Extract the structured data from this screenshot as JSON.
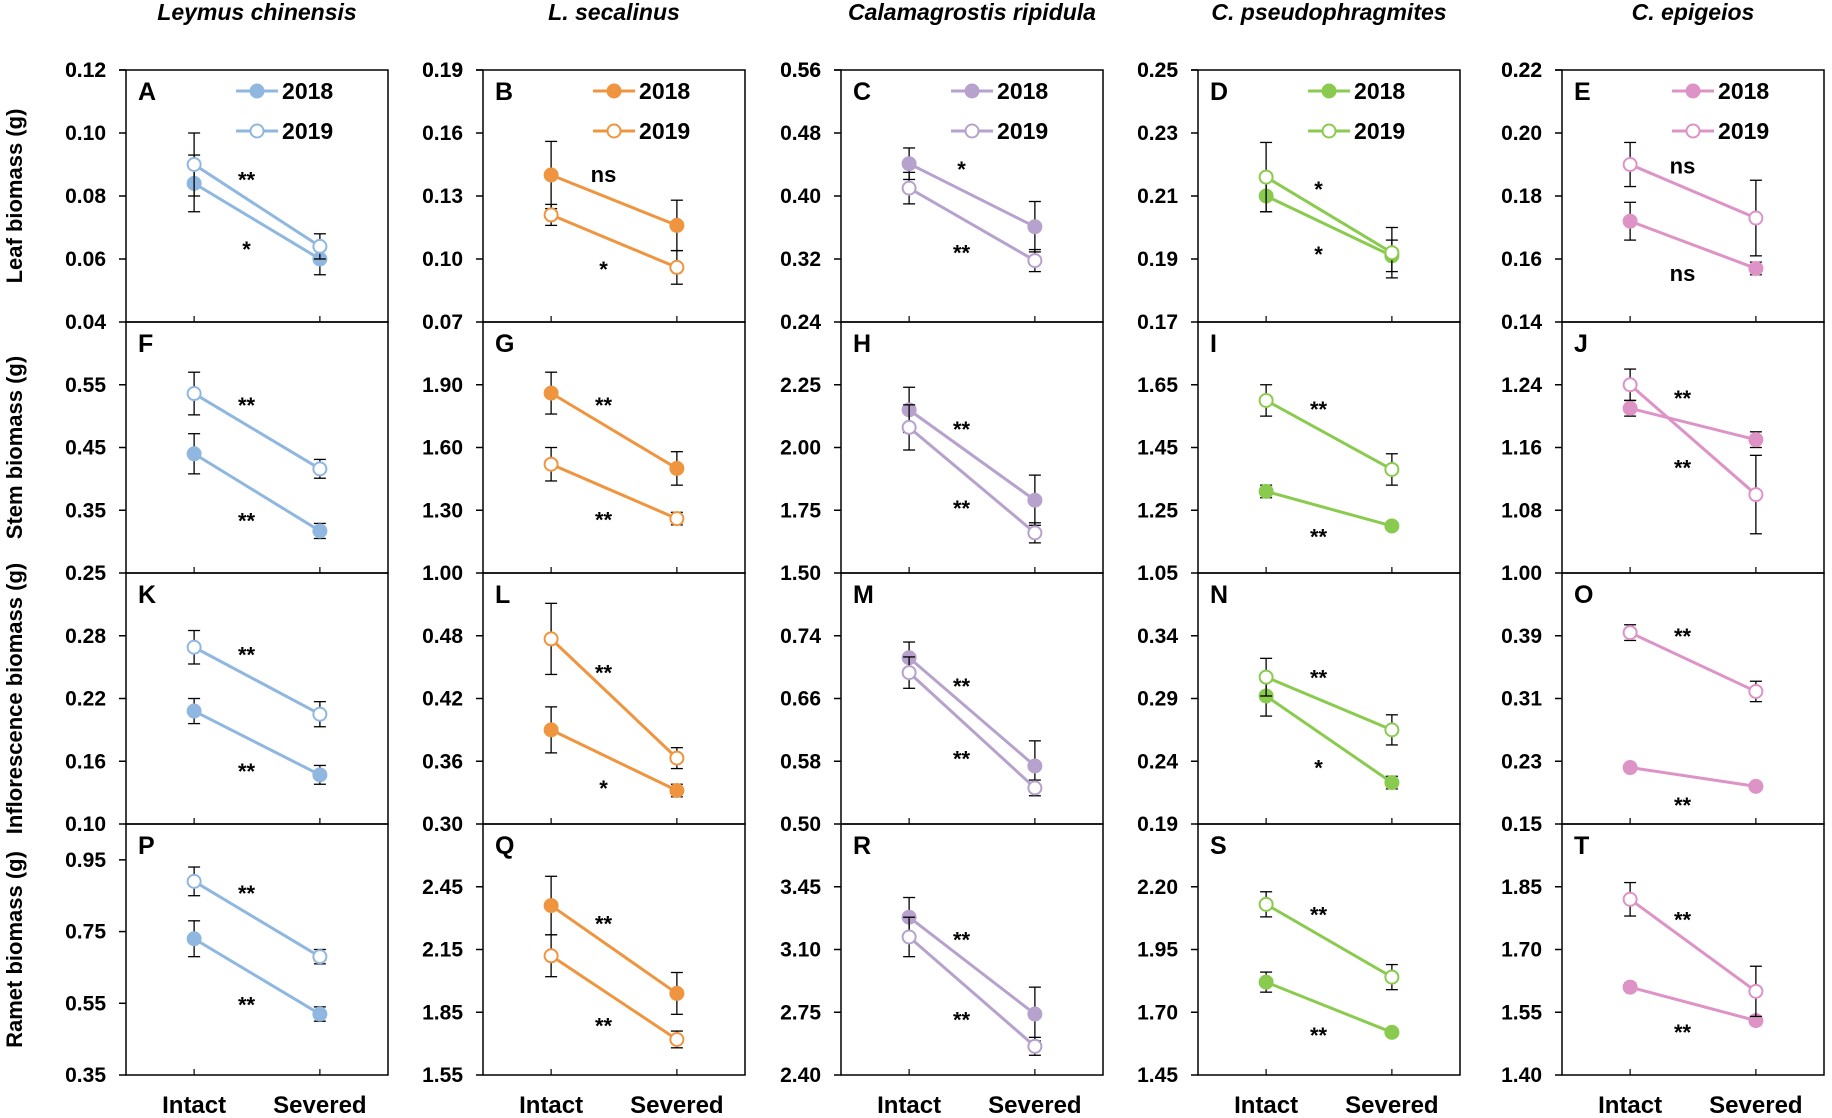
{
  "chart_data": {
    "type": "line",
    "x_categories": [
      "Intact",
      "Severed"
    ],
    "years": [
      "2018",
      "2019"
    ],
    "columns": [
      {
        "species": "Leymus chinensis",
        "color": "#8fb7e0"
      },
      {
        "species": "L. secalinus",
        "color": "#f0953f"
      },
      {
        "species": "Calamagrostis ripidula",
        "color": "#b6a2cc"
      },
      {
        "species": "C. pseudophragmites",
        "color": "#8acb4f"
      },
      {
        "species": "C. epigeios",
        "color": "#dd93c6"
      }
    ],
    "rows": [
      {
        "ylabel": "Leaf biomass (g)"
      },
      {
        "ylabel": "Stem biomass (g)"
      },
      {
        "ylabel": "Inflorescence biomass (g)"
      },
      {
        "ylabel": "Ramet biomass (g)"
      }
    ],
    "panels": [
      {
        "label": "A",
        "row": 0,
        "col": 0,
        "ylim": [
          0.04,
          0.12
        ],
        "yticks": [
          "0.04",
          "0.06",
          "0.08",
          "0.10",
          "0.12"
        ],
        "legend": true,
        "series": [
          {
            "name": "2018",
            "filled": true,
            "values": [
              0.084,
              0.06
            ],
            "errors": [
              0.009,
              0.005
            ]
          },
          {
            "name": "2019",
            "filled": false,
            "values": [
              0.09,
              0.064
            ],
            "errors": [
              0.01,
              0.004
            ]
          }
        ],
        "sig": [
          {
            "text": "**",
            "pos": "upper"
          },
          {
            "text": "*",
            "pos": "lower"
          }
        ]
      },
      {
        "label": "B",
        "row": 0,
        "col": 1,
        "ylim": [
          0.07,
          0.19
        ],
        "yticks": [
          "0.07",
          "0.10",
          "0.13",
          "0.16",
          "0.19"
        ],
        "legend": true,
        "series": [
          {
            "name": "2018",
            "filled": true,
            "values": [
              0.14,
              0.116
            ],
            "errors": [
              0.016,
              0.012
            ]
          },
          {
            "name": "2019",
            "filled": false,
            "values": [
              0.121,
              0.096
            ],
            "errors": [
              0.005,
              0.008
            ]
          }
        ],
        "sig": [
          {
            "text": "ns",
            "pos": "upper"
          },
          {
            "text": "*",
            "pos": "lower"
          }
        ]
      },
      {
        "label": "C",
        "row": 0,
        "col": 2,
        "ylim": [
          0.24,
          0.56
        ],
        "yticks": [
          "0.24",
          "0.32",
          "0.40",
          "0.48",
          "0.56"
        ],
        "legend": true,
        "series": [
          {
            "name": "2018",
            "filled": true,
            "values": [
              0.441,
              0.361
            ],
            "errors": [
              0.02,
              0.032
            ]
          },
          {
            "name": "2019",
            "filled": false,
            "values": [
              0.41,
              0.318
            ],
            "errors": [
              0.02,
              0.014
            ]
          }
        ],
        "sig": [
          {
            "text": "*",
            "pos": "upper"
          },
          {
            "text": "**",
            "pos": "lower"
          }
        ]
      },
      {
        "label": "D",
        "row": 0,
        "col": 3,
        "ylim": [
          0.17,
          0.25
        ],
        "yticks": [
          "0.17",
          "0.19",
          "0.21",
          "0.23",
          "0.25"
        ],
        "legend": true,
        "series": [
          {
            "name": "2018",
            "filled": true,
            "values": [
              0.21,
              0.191
            ],
            "errors": [
              0.005,
              0.005
            ]
          },
          {
            "name": "2019",
            "filled": false,
            "values": [
              0.216,
              0.192
            ],
            "errors": [
              0.011,
              0.008
            ]
          }
        ],
        "sig": [
          {
            "text": "*",
            "pos": "upper"
          },
          {
            "text": "*",
            "pos": "lower"
          }
        ]
      },
      {
        "label": "E",
        "row": 0,
        "col": 4,
        "ylim": [
          0.14,
          0.22
        ],
        "yticks": [
          "0.14",
          "0.16",
          "0.18",
          "0.20",
          "0.22"
        ],
        "legend": true,
        "series": [
          {
            "name": "2018",
            "filled": true,
            "values": [
              0.172,
              0.157
            ],
            "errors": [
              0.006,
              0.002
            ]
          },
          {
            "name": "2019",
            "filled": false,
            "values": [
              0.19,
              0.173
            ],
            "errors": [
              0.007,
              0.012
            ]
          }
        ],
        "sig": [
          {
            "text": "ns",
            "pos": "upper"
          },
          {
            "text": "ns",
            "pos": "lower"
          }
        ]
      },
      {
        "label": "F",
        "row": 1,
        "col": 0,
        "ylim": [
          0.25,
          0.65
        ],
        "yticks": [
          "0.25",
          "0.35",
          "0.45",
          "0.55"
        ],
        "legend": false,
        "series": [
          {
            "name": "2018",
            "filled": true,
            "values": [
              0.44,
              0.317
            ],
            "errors": [
              0.032,
              0.012
            ]
          },
          {
            "name": "2019",
            "filled": false,
            "values": [
              0.536,
              0.416
            ],
            "errors": [
              0.034,
              0.015
            ]
          }
        ],
        "sig": [
          {
            "text": "**",
            "pos": "upper"
          },
          {
            "text": "**",
            "pos": "lower"
          }
        ]
      },
      {
        "label": "G",
        "row": 1,
        "col": 1,
        "ylim": [
          1.0,
          2.2
        ],
        "yticks": [
          "1.00",
          "1.30",
          "1.60",
          "1.90"
        ],
        "legend": false,
        "series": [
          {
            "name": "2018",
            "filled": true,
            "values": [
              1.86,
              1.5
            ],
            "errors": [
              0.1,
              0.08
            ]
          },
          {
            "name": "2019",
            "filled": false,
            "values": [
              1.52,
              1.26
            ],
            "errors": [
              0.08,
              0.03
            ]
          }
        ],
        "sig": [
          {
            "text": "**",
            "pos": "upper"
          },
          {
            "text": "**",
            "pos": "lower"
          }
        ]
      },
      {
        "label": "H",
        "row": 1,
        "col": 2,
        "ylim": [
          1.5,
          2.5
        ],
        "yticks": [
          "1.50",
          "1.75",
          "2.00",
          "2.25"
        ],
        "legend": false,
        "series": [
          {
            "name": "2018",
            "filled": true,
            "values": [
              2.15,
              1.79
            ],
            "errors": [
              0.09,
              0.1
            ]
          },
          {
            "name": "2019",
            "filled": false,
            "values": [
              2.08,
              1.66
            ],
            "errors": [
              0.09,
              0.04
            ]
          }
        ],
        "sig": [
          {
            "text": "**",
            "pos": "upper"
          },
          {
            "text": "**",
            "pos": "lower"
          }
        ]
      },
      {
        "label": "I",
        "row": 1,
        "col": 3,
        "ylim": [
          1.05,
          1.85
        ],
        "yticks": [
          "1.05",
          "1.25",
          "1.45",
          "1.65"
        ],
        "legend": false,
        "series": [
          {
            "name": "2018",
            "filled": true,
            "values": [
              1.31,
              1.2
            ],
            "errors": [
              0.02,
              0.01
            ]
          },
          {
            "name": "2019",
            "filled": false,
            "values": [
              1.6,
              1.38
            ],
            "errors": [
              0.05,
              0.05
            ]
          }
        ],
        "sig": [
          {
            "text": "**",
            "pos": "upper"
          },
          {
            "text": "**",
            "pos": "lower"
          }
        ]
      },
      {
        "label": "J",
        "row": 1,
        "col": 4,
        "ylim": [
          1.0,
          1.32
        ],
        "yticks": [
          "1.00",
          "1.08",
          "1.16",
          "1.24"
        ],
        "legend": false,
        "series": [
          {
            "name": "2018",
            "filled": true,
            "values": [
              1.21,
              1.17
            ],
            "errors": [
              0.01,
              0.01
            ]
          },
          {
            "name": "2019",
            "filled": false,
            "values": [
              1.24,
              1.1
            ],
            "errors": [
              0.02,
              0.05
            ]
          }
        ],
        "sig": [
          {
            "text": "**",
            "pos": "upper"
          },
          {
            "text": "**",
            "pos": "lower"
          }
        ]
      },
      {
        "label": "K",
        "row": 2,
        "col": 0,
        "ylim": [
          0.1,
          0.34
        ],
        "yticks": [
          "0.10",
          "0.16",
          "0.22",
          "0.28"
        ],
        "legend": false,
        "series": [
          {
            "name": "2018",
            "filled": true,
            "values": [
              0.208,
              0.147
            ],
            "errors": [
              0.012,
              0.009
            ]
          },
          {
            "name": "2019",
            "filled": false,
            "values": [
              0.269,
              0.205
            ],
            "errors": [
              0.016,
              0.012
            ]
          }
        ],
        "sig": [
          {
            "text": "**",
            "pos": "upper"
          },
          {
            "text": "**",
            "pos": "lower"
          }
        ]
      },
      {
        "label": "L",
        "row": 2,
        "col": 1,
        "ylim": [
          0.3,
          0.54
        ],
        "yticks": [
          "0.30",
          "0.36",
          "0.42",
          "0.48"
        ],
        "legend": false,
        "series": [
          {
            "name": "2018",
            "filled": true,
            "values": [
              0.39,
              0.332
            ],
            "errors": [
              0.022,
              0.006
            ]
          },
          {
            "name": "2019",
            "filled": false,
            "values": [
              0.477,
              0.363
            ],
            "errors": [
              0.034,
              0.01
            ]
          }
        ],
        "sig": [
          {
            "text": "**",
            "pos": "upper"
          },
          {
            "text": "*",
            "pos": "lower"
          }
        ]
      },
      {
        "label": "M",
        "row": 2,
        "col": 2,
        "ylim": [
          0.5,
          0.82
        ],
        "yticks": [
          "0.50",
          "0.58",
          "0.66",
          "0.74"
        ],
        "legend": false,
        "series": [
          {
            "name": "2018",
            "filled": true,
            "values": [
              0.712,
              0.574
            ],
            "errors": [
              0.02,
              0.032
            ]
          },
          {
            "name": "2019",
            "filled": false,
            "values": [
              0.693,
              0.546
            ],
            "errors": [
              0.02,
              0.01
            ]
          }
        ],
        "sig": [
          {
            "text": "**",
            "pos": "upper"
          },
          {
            "text": "**",
            "pos": "lower"
          }
        ]
      },
      {
        "label": "N",
        "row": 2,
        "col": 3,
        "ylim": [
          0.19,
          0.39
        ],
        "yticks": [
          "0.19",
          "0.24",
          "0.29",
          "0.34"
        ],
        "legend": false,
        "series": [
          {
            "name": "2018",
            "filled": true,
            "values": [
              0.292,
              0.223
            ],
            "errors": [
              0.016,
              0.005
            ]
          },
          {
            "name": "2019",
            "filled": false,
            "values": [
              0.307,
              0.265
            ],
            "errors": [
              0.015,
              0.012
            ]
          }
        ],
        "sig": [
          {
            "text": "**",
            "pos": "upper"
          },
          {
            "text": "*",
            "pos": "lower"
          }
        ]
      },
      {
        "label": "O",
        "row": 2,
        "col": 4,
        "ylim": [
          0.15,
          0.47
        ],
        "yticks": [
          "0.15",
          "0.23",
          "0.31",
          "0.39"
        ],
        "legend": false,
        "series": [
          {
            "name": "2018",
            "filled": true,
            "values": [
              0.222,
              0.198
            ],
            "errors": [
              0.002,
              0.002
            ]
          },
          {
            "name": "2019",
            "filled": false,
            "values": [
              0.394,
              0.319
            ],
            "errors": [
              0.01,
              0.013
            ]
          }
        ],
        "sig": [
          {
            "text": "**",
            "pos": "upper"
          },
          {
            "text": "**",
            "pos": "lower"
          }
        ]
      },
      {
        "label": "P",
        "row": 3,
        "col": 0,
        "ylim": [
          0.35,
          1.05
        ],
        "yticks": [
          "0.35",
          "0.55",
          "0.75",
          "0.95"
        ],
        "legend": false,
        "series": [
          {
            "name": "2018",
            "filled": true,
            "values": [
              0.73,
              0.52
            ],
            "errors": [
              0.05,
              0.02
            ]
          },
          {
            "name": "2019",
            "filled": false,
            "values": [
              0.89,
              0.68
            ],
            "errors": [
              0.04,
              0.02
            ]
          }
        ],
        "sig": [
          {
            "text": "**",
            "pos": "upper"
          },
          {
            "text": "**",
            "pos": "lower"
          }
        ]
      },
      {
        "label": "Q",
        "row": 3,
        "col": 1,
        "ylim": [
          1.55,
          2.75
        ],
        "yticks": [
          "1.55",
          "1.85",
          "2.15",
          "2.45"
        ],
        "legend": false,
        "series": [
          {
            "name": "2018",
            "filled": true,
            "values": [
              2.36,
              1.94
            ],
            "errors": [
              0.14,
              0.1
            ]
          },
          {
            "name": "2019",
            "filled": false,
            "values": [
              2.12,
              1.72
            ],
            "errors": [
              0.1,
              0.04
            ]
          }
        ],
        "sig": [
          {
            "text": "**",
            "pos": "upper"
          },
          {
            "text": "**",
            "pos": "lower"
          }
        ]
      },
      {
        "label": "R",
        "row": 3,
        "col": 2,
        "ylim": [
          2.4,
          3.8
        ],
        "yticks": [
          "2.40",
          "2.75",
          "3.10",
          "3.45"
        ],
        "legend": false,
        "series": [
          {
            "name": "2018",
            "filled": true,
            "values": [
              3.28,
              2.74
            ],
            "errors": [
              0.11,
              0.15
            ]
          },
          {
            "name": "2019",
            "filled": false,
            "values": [
              3.17,
              2.56
            ],
            "errors": [
              0.11,
              0.05
            ]
          }
        ],
        "sig": [
          {
            "text": "**",
            "pos": "upper"
          },
          {
            "text": "**",
            "pos": "lower"
          }
        ]
      },
      {
        "label": "S",
        "row": 3,
        "col": 3,
        "ylim": [
          1.45,
          2.45
        ],
        "yticks": [
          "1.45",
          "1.70",
          "1.95",
          "2.20"
        ],
        "legend": false,
        "series": [
          {
            "name": "2018",
            "filled": true,
            "values": [
              1.82,
              1.62
            ],
            "errors": [
              0.04,
              0.01
            ]
          },
          {
            "name": "2019",
            "filled": false,
            "values": [
              2.13,
              1.84
            ],
            "errors": [
              0.05,
              0.05
            ]
          }
        ],
        "sig": [
          {
            "text": "**",
            "pos": "upper"
          },
          {
            "text": "**",
            "pos": "lower"
          }
        ]
      },
      {
        "label": "T",
        "row": 3,
        "col": 4,
        "ylim": [
          1.4,
          2.0
        ],
        "yticks": [
          "1.40",
          "1.55",
          "1.70",
          "1.85"
        ],
        "legend": false,
        "series": [
          {
            "name": "2018",
            "filled": true,
            "values": [
              1.61,
              1.53
            ],
            "errors": [
              0.01,
              0.01
            ]
          },
          {
            "name": "2019",
            "filled": false,
            "values": [
              1.82,
              1.6
            ],
            "errors": [
              0.04,
              0.06
            ]
          }
        ],
        "sig": [
          {
            "text": "**",
            "pos": "upper"
          },
          {
            "text": "**",
            "pos": "lower"
          }
        ]
      }
    ]
  }
}
